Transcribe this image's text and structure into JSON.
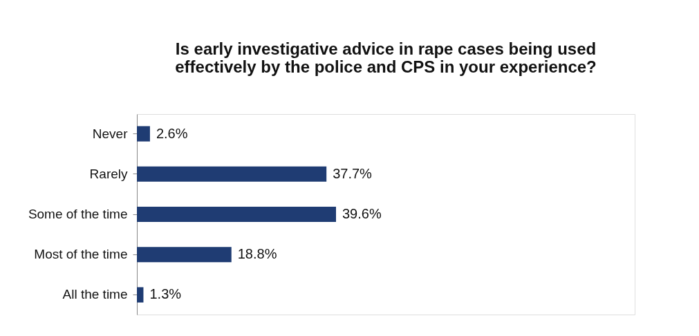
{
  "chart_data": {
    "type": "bar",
    "orientation": "horizontal",
    "title": [
      "Is early investigative advice in rape cases being used",
      "effectively by the police and CPS in your experience?"
    ],
    "categories": [
      "Never",
      "Rarely",
      "Some of the time",
      "Most of the time",
      "All the time"
    ],
    "values": [
      2.6,
      37.7,
      39.6,
      18.8,
      1.3
    ],
    "value_labels": [
      "2.6%",
      "37.7%",
      "39.6%",
      "18.8%",
      "1.3%"
    ],
    "color": "#1f3c73",
    "grid": false
  }
}
